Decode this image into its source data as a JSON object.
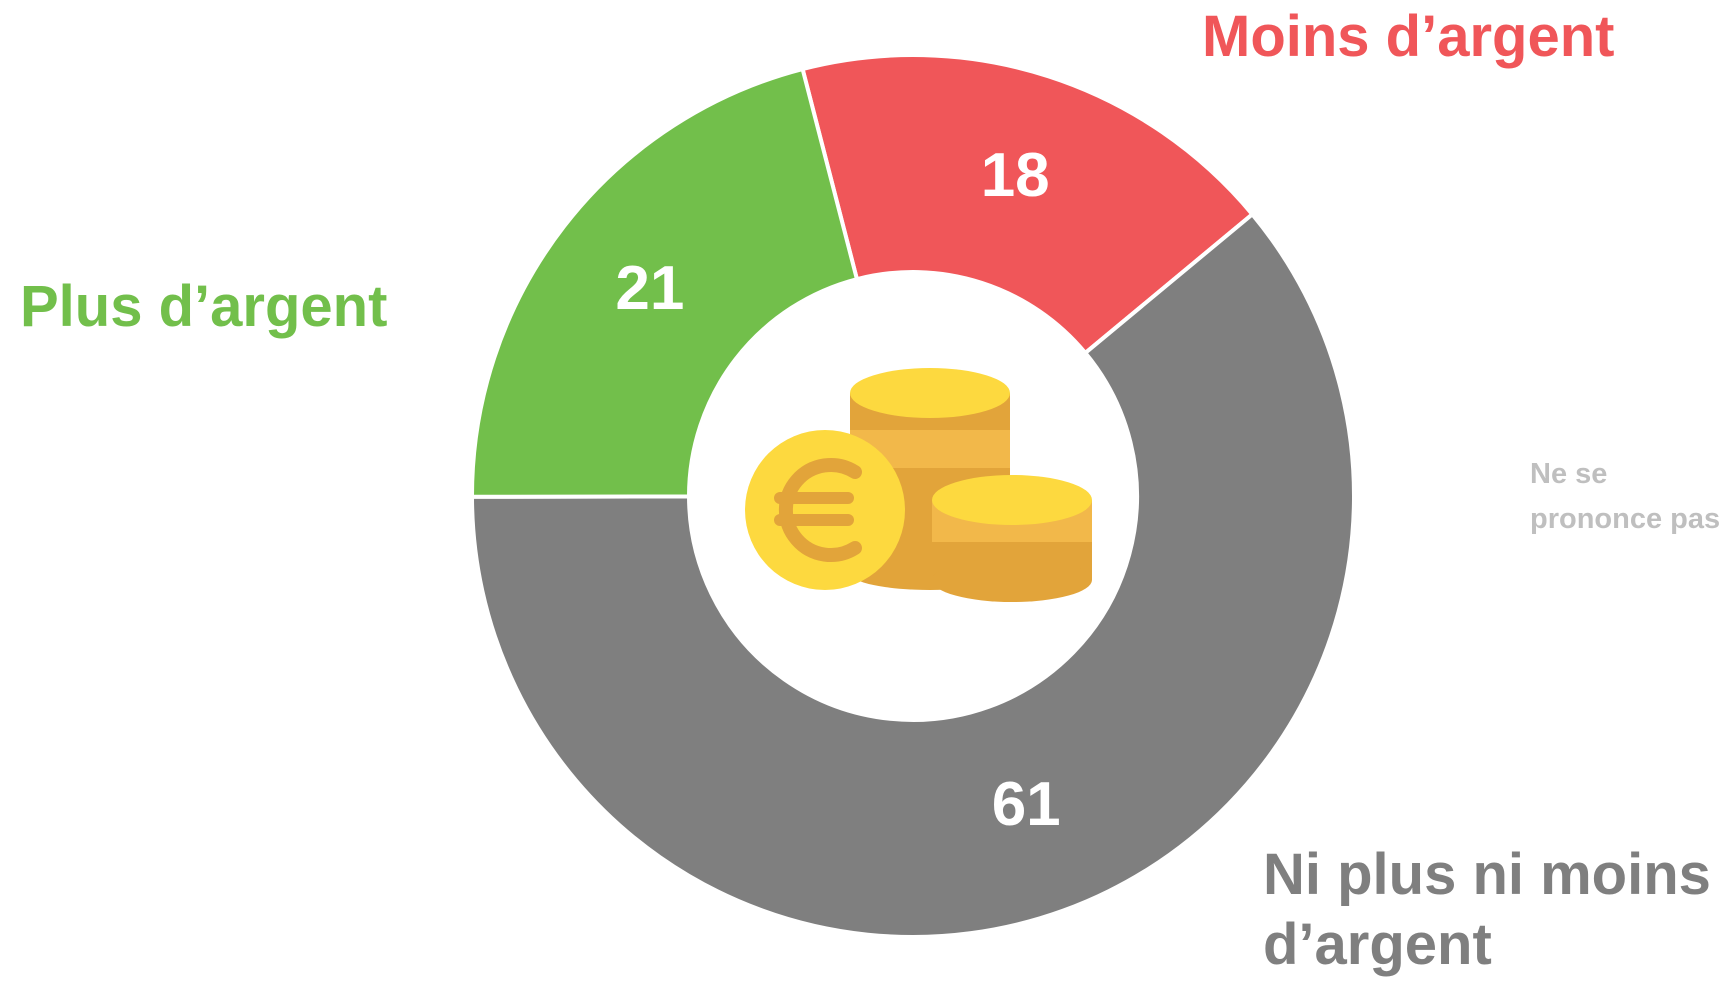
{
  "chart_data": {
    "type": "donut",
    "categories": [
      "Moins d’argent",
      "Ni plus ni moins d’argent",
      "Plus d’argent"
    ],
    "values": [
      18,
      61,
      21
    ],
    "colors": [
      "#f05659",
      "#7f7f7f",
      "#72bf4b"
    ],
    "annotation": "Ne se prononce pas"
  }
}
